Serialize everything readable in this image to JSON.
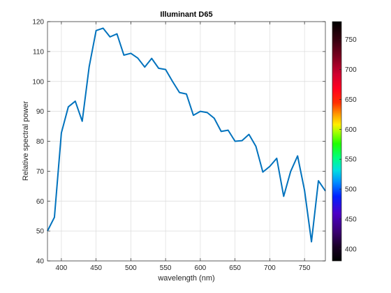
{
  "chart_data": {
    "type": "line",
    "title": "Illuminant D65",
    "xlabel": "wavelength (nm)",
    "ylabel": "Relative spectral power",
    "xlim": [
      380,
      780
    ],
    "ylim": [
      40,
      120
    ],
    "grid": true,
    "x_ticks": [
      "400",
      "450",
      "500",
      "550",
      "600",
      "650",
      "700",
      "750"
    ],
    "y_ticks": [
      "40",
      "50",
      "60",
      "70",
      "80",
      "90",
      "100",
      "110",
      "120"
    ],
    "series": [
      {
        "color": "#0072BD",
        "x": [
          380,
          390,
          400,
          410,
          420,
          430,
          440,
          450,
          460,
          470,
          480,
          490,
          500,
          510,
          520,
          530,
          540,
          550,
          560,
          570,
          580,
          590,
          600,
          610,
          620,
          630,
          640,
          650,
          660,
          670,
          680,
          690,
          700,
          710,
          720,
          730,
          740,
          750,
          760,
          770,
          780
        ],
        "y": [
          50.0,
          54.6,
          82.8,
          91.5,
          93.4,
          86.7,
          104.9,
          117.0,
          117.8,
          114.9,
          115.9,
          108.8,
          109.4,
          107.8,
          104.8,
          107.7,
          104.4,
          104.0,
          100.0,
          96.3,
          95.8,
          88.7,
          90.0,
          89.6,
          87.7,
          83.3,
          83.7,
          80.0,
          80.2,
          82.3,
          78.3,
          69.7,
          71.6,
          74.3,
          61.6,
          69.9,
          75.1,
          63.6,
          46.4,
          66.8,
          63.4
        ]
      }
    ],
    "colorbar": {
      "ticks": [
        "400",
        "450",
        "500",
        "550",
        "600",
        "650",
        "700",
        "750"
      ],
      "range": [
        380,
        780
      ],
      "colormap": "spectrum"
    }
  }
}
